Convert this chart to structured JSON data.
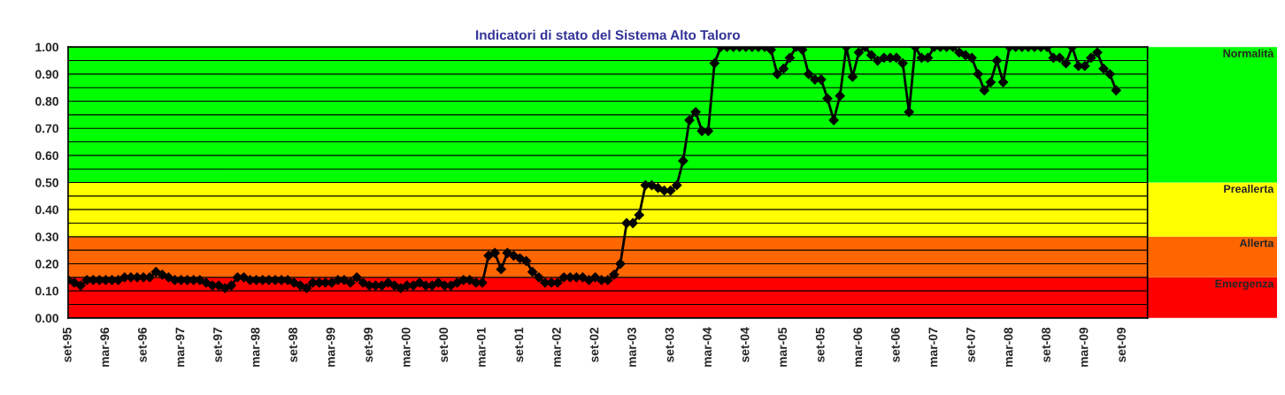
{
  "chart_data": {
    "type": "line",
    "title": "Indicatori di stato del Sistema Alto Taloro",
    "categories": [
      "set-95",
      null,
      null,
      null,
      null,
      null,
      "mar-96",
      null,
      null,
      null,
      null,
      null,
      "set-96",
      null,
      null,
      null,
      null,
      null,
      "mar-97",
      null,
      null,
      null,
      null,
      null,
      "set-97",
      null,
      null,
      null,
      null,
      null,
      "mar-98",
      null,
      null,
      null,
      null,
      null,
      "set-98",
      null,
      null,
      null,
      null,
      null,
      "mar-99",
      null,
      null,
      null,
      null,
      null,
      "set-99",
      null,
      null,
      null,
      null,
      null,
      "mar-00",
      null,
      null,
      null,
      null,
      null,
      "set-00",
      null,
      null,
      null,
      null,
      null,
      "mar-01",
      null,
      null,
      null,
      null,
      null,
      "set-01",
      null,
      null,
      null,
      null,
      null,
      "mar-02",
      null,
      null,
      null,
      null,
      null,
      "set-02",
      null,
      null,
      null,
      null,
      null,
      "mar-03",
      null,
      null,
      null,
      null,
      null,
      "set-03",
      null,
      null,
      null,
      null,
      null,
      "mar-04",
      null,
      null,
      null,
      null,
      null,
      "set-04",
      null,
      null,
      null,
      null,
      null,
      "mar-05",
      null,
      null,
      null,
      null,
      null,
      "set-05",
      null,
      null,
      null,
      null,
      null,
      "mar-06",
      null,
      null,
      null,
      null,
      null,
      "set-06",
      null,
      null,
      null,
      null,
      null,
      "mar-07",
      null,
      null,
      null,
      null,
      null,
      "set-07",
      null,
      null,
      null,
      null,
      null,
      "mar-08",
      null,
      null,
      null,
      null,
      null,
      "set-08",
      null,
      null,
      null,
      null,
      null,
      "mar-09",
      null,
      null,
      null,
      null,
      null,
      "set-09",
      null,
      null,
      null,
      null
    ],
    "series": [
      {
        "color": "#000000",
        "values": [
          0.14,
          0.13,
          0.12,
          0.14,
          0.14,
          0.14,
          0.14,
          0.14,
          0.14,
          0.15,
          0.15,
          0.15,
          0.15,
          0.15,
          0.17,
          0.16,
          0.15,
          0.14,
          0.14,
          0.14,
          0.14,
          0.14,
          0.13,
          0.12,
          0.12,
          0.11,
          0.12,
          0.15,
          0.15,
          0.14,
          0.14,
          0.14,
          0.14,
          0.14,
          0.14,
          0.14,
          0.13,
          0.12,
          0.11,
          0.13,
          0.13,
          0.13,
          0.13,
          0.14,
          0.14,
          0.13,
          0.15,
          0.13,
          0.12,
          0.12,
          0.12,
          0.13,
          0.12,
          0.11,
          0.12,
          0.12,
          0.13,
          0.12,
          0.12,
          0.13,
          0.12,
          0.12,
          0.13,
          0.14,
          0.14,
          0.13,
          0.13,
          0.23,
          0.24,
          0.18,
          0.24,
          0.23,
          0.22,
          0.21,
          0.17,
          0.15,
          0.13,
          0.13,
          0.13,
          0.15,
          0.15,
          0.15,
          0.15,
          0.14,
          0.15,
          0.14,
          0.14,
          0.16,
          0.2,
          0.35,
          0.35,
          0.38,
          0.49,
          0.49,
          0.48,
          0.47,
          0.47,
          0.49,
          0.58,
          0.73,
          0.76,
          0.69,
          0.69,
          0.94,
          1.0,
          1.0,
          1.0,
          1.0,
          1.0,
          1.0,
          1.0,
          1.0,
          0.99,
          0.9,
          0.92,
          0.96,
          1.0,
          0.99,
          0.9,
          0.88,
          0.88,
          0.81,
          0.73,
          0.82,
          1.0,
          0.89,
          0.98,
          1.0,
          0.97,
          0.95,
          0.96,
          0.96,
          0.96,
          0.94,
          0.76,
          1.0,
          0.96,
          0.96,
          1.0,
          1.0,
          1.0,
          1.0,
          0.98,
          0.97,
          0.96,
          0.9,
          0.84,
          0.87,
          0.95,
          0.87,
          1.0,
          1.0,
          1.0,
          1.0,
          1.0,
          1.0,
          1.0,
          0.96,
          0.96,
          0.94,
          1.0,
          0.93,
          0.93,
          0.96,
          0.98,
          0.92,
          0.9,
          0.84,
          null,
          null,
          null,
          null,
          null
        ]
      }
    ],
    "ylim": [
      0,
      1
    ],
    "yticks": [
      {
        "value": 0,
        "label": "0.00"
      },
      {
        "value": 0.05,
        "label": null
      },
      {
        "value": 0.1,
        "label": "0.10"
      },
      {
        "value": 0.15,
        "label": null
      },
      {
        "value": 0.2,
        "label": "0.20"
      },
      {
        "value": 0.25,
        "label": null
      },
      {
        "value": 0.3,
        "label": "0.30"
      },
      {
        "value": 0.35,
        "label": null
      },
      {
        "value": 0.4,
        "label": "0.40"
      },
      {
        "value": 0.45,
        "label": null
      },
      {
        "value": 0.5,
        "label": "0.50"
      },
      {
        "value": 0.55,
        "label": null
      },
      {
        "value": 0.6,
        "label": "0.60"
      },
      {
        "value": 0.65,
        "label": null
      },
      {
        "value": 0.7,
        "label": "0.70"
      },
      {
        "value": 0.75,
        "label": null
      },
      {
        "value": 0.8,
        "label": "0.80"
      },
      {
        "value": 0.85,
        "label": null
      },
      {
        "value": 0.9,
        "label": "0.90"
      },
      {
        "value": 0.95,
        "label": null
      },
      {
        "value": 1,
        "label": "1.00"
      }
    ],
    "bands": [
      {
        "axis": "y",
        "from": 0,
        "to": 0.15,
        "label": "Emergenza",
        "color": "#ff0000"
      },
      {
        "axis": "y",
        "from": 0.15,
        "to": 0.3,
        "label": "Allerta",
        "color": "#ff6600"
      },
      {
        "axis": "y",
        "from": 0.3,
        "to": 0.5,
        "label": "Preallerta",
        "color": "#ffff00"
      },
      {
        "axis": "y",
        "from": 0.5,
        "to": 1,
        "label": "Normalità",
        "color": "#00ff00"
      }
    ],
    "grid": "y",
    "marker": "diamond",
    "line_style": "solid"
  }
}
